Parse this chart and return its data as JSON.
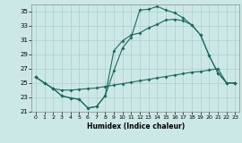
{
  "xlabel": "Humidex (Indice chaleur)",
  "bg_color": "#cce8e6",
  "line_color": "#1a6b60",
  "grid_color": "#aacfcc",
  "xlim": [
    -0.5,
    23.5
  ],
  "ylim": [
    21,
    36
  ],
  "yticks": [
    21,
    23,
    25,
    27,
    29,
    31,
    33,
    35
  ],
  "xticks": [
    0,
    1,
    2,
    3,
    4,
    5,
    6,
    7,
    8,
    9,
    10,
    11,
    12,
    13,
    14,
    15,
    16,
    17,
    18,
    19,
    20,
    21,
    22,
    23
  ],
  "line1_x": [
    0,
    1,
    2,
    3,
    4,
    5,
    6,
    7,
    8,
    9,
    10,
    11,
    12,
    13,
    14,
    15,
    16,
    17,
    18,
    19,
    20,
    21,
    22,
    23
  ],
  "line1_y": [
    25.8,
    25.0,
    24.2,
    24.0,
    24.0,
    24.1,
    24.2,
    24.3,
    24.5,
    24.7,
    24.9,
    25.1,
    25.3,
    25.5,
    25.7,
    25.9,
    26.1,
    26.3,
    26.5,
    26.6,
    26.8,
    27.0,
    25.0,
    25.0
  ],
  "line2_x": [
    0,
    1,
    2,
    3,
    4,
    5,
    6,
    7,
    8,
    9,
    10,
    11,
    12,
    13,
    14,
    15,
    16,
    17,
    18,
    19,
    20,
    21,
    22,
    23
  ],
  "line2_y": [
    25.8,
    25.0,
    24.2,
    23.2,
    22.9,
    22.7,
    21.5,
    21.7,
    23.2,
    26.7,
    29.9,
    31.4,
    35.2,
    35.3,
    35.7,
    35.2,
    34.8,
    34.1,
    33.1,
    31.7,
    28.8,
    26.4,
    25.0,
    25.0
  ],
  "line3_x": [
    0,
    1,
    2,
    3,
    4,
    5,
    6,
    7,
    8,
    9,
    10,
    11,
    12,
    13,
    14,
    15,
    16,
    17,
    18,
    19,
    20,
    21,
    22,
    23
  ],
  "line3_y": [
    25.8,
    25.0,
    24.2,
    23.2,
    22.9,
    22.7,
    21.5,
    21.7,
    23.2,
    29.5,
    30.9,
    31.7,
    32.0,
    32.7,
    33.2,
    33.8,
    33.9,
    33.7,
    33.1,
    31.7,
    28.8,
    26.4,
    25.0,
    25.0
  ]
}
